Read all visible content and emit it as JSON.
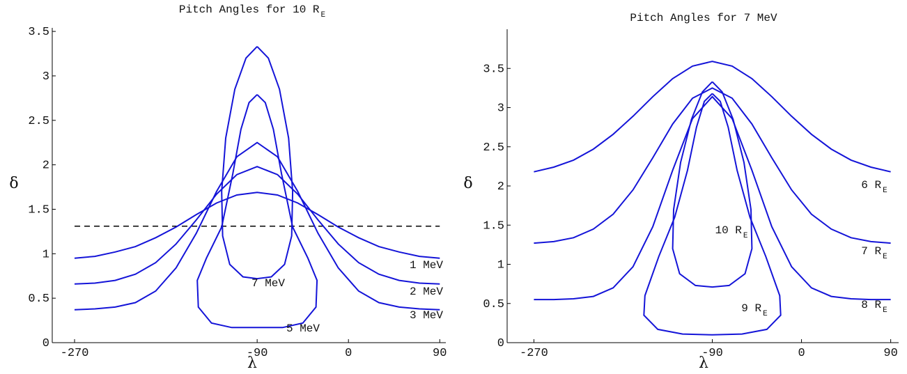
{
  "chart_data": [
    {
      "type": "line",
      "title": "Pitch Angles for 10 R",
      "title_sub": "E",
      "xlabel": "λ",
      "ylabel": "δ",
      "xlim": [
        -292,
        96
      ],
      "ylim": [
        0,
        3.54
      ],
      "xticks": [
        -270,
        -90,
        0,
        90
      ],
      "yticks": [
        0,
        0.5,
        1,
        1.5,
        2,
        2.5,
        3,
        3.5
      ],
      "hline": {
        "value": 1.31,
        "from": -270,
        "to": 90,
        "color": "#000000",
        "dashed": true
      },
      "series": [
        {
          "name": "1 MeV",
          "color": "#1414d8",
          "x": [
            -270,
            -250,
            -230,
            -210,
            -190,
            -170,
            -150,
            -130,
            -110,
            -90,
            -70,
            -50,
            -30,
            -10,
            10,
            30,
            50,
            70,
            90
          ],
          "values": [
            0.95,
            0.97,
            1.02,
            1.08,
            1.18,
            1.3,
            1.44,
            1.57,
            1.66,
            1.69,
            1.66,
            1.57,
            1.44,
            1.3,
            1.18,
            1.08,
            1.02,
            0.97,
            0.95
          ]
        },
        {
          "name": "2 MeV",
          "color": "#1414d8",
          "x": [
            -270,
            -250,
            -230,
            -210,
            -190,
            -170,
            -150,
            -130,
            -110,
            -90,
            -70,
            -50,
            -30,
            -10,
            10,
            30,
            50,
            70,
            90
          ],
          "values": [
            0.66,
            0.67,
            0.7,
            0.77,
            0.9,
            1.11,
            1.38,
            1.67,
            1.89,
            1.98,
            1.89,
            1.67,
            1.38,
            1.11,
            0.9,
            0.77,
            0.7,
            0.67,
            0.66
          ]
        },
        {
          "name": "3 MeV",
          "color": "#1414d8",
          "x": [
            -270,
            -250,
            -230,
            -210,
            -190,
            -170,
            -150,
            -130,
            -110,
            -90,
            -70,
            -50,
            -30,
            -10,
            10,
            30,
            50,
            70,
            90
          ],
          "values": [
            0.37,
            0.38,
            0.4,
            0.45,
            0.58,
            0.84,
            1.23,
            1.7,
            2.09,
            2.25,
            2.09,
            1.7,
            1.23,
            0.84,
            0.58,
            0.45,
            0.4,
            0.38,
            0.37
          ]
        },
        {
          "name": "7 MeV",
          "color": "#1414d8",
          "x": [
            -90,
            -79,
            -68,
            -59,
            -55,
            -56,
            -63,
            -76,
            -90,
            -104,
            -117,
            -124,
            -125,
            -121,
            -112,
            -101,
            -90
          ],
          "values": [
            3.33,
            3.2,
            2.85,
            2.3,
            1.7,
            1.2,
            0.88,
            0.74,
            0.72,
            0.74,
            0.88,
            1.2,
            1.7,
            2.3,
            2.85,
            3.2,
            3.33
          ]
        },
        {
          "name": "5 MeV",
          "color": "#1414d8",
          "x": [
            -90,
            -82,
            -74,
            -66,
            -55,
            -40,
            -31,
            -32,
            -45,
            -65,
            -90,
            -115,
            -135,
            -148,
            -149,
            -140,
            -125,
            -114,
            -106,
            -98,
            -90
          ],
          "values": [
            2.79,
            2.7,
            2.4,
            1.9,
            1.3,
            0.95,
            0.7,
            0.4,
            0.22,
            0.17,
            0.17,
            0.17,
            0.22,
            0.4,
            0.7,
            0.95,
            1.3,
            1.9,
            2.4,
            2.7,
            2.79
          ]
        }
      ]
    },
    {
      "type": "line",
      "title": "Pitch Angles for 7 MeV",
      "xlabel": "λ",
      "ylabel": "δ",
      "xlim": [
        -297,
        98
      ],
      "ylim": [
        0,
        4
      ],
      "xticks": [
        -270,
        -90,
        0,
        90
      ],
      "yticks": [
        0,
        0.5,
        1,
        1.5,
        2,
        2.5,
        3,
        3.5
      ],
      "series": [
        {
          "name": "6 R",
          "name_sub": "E",
          "color": "#1414d8",
          "x": [
            -270,
            -250,
            -230,
            -210,
            -190,
            -170,
            -150,
            -130,
            -110,
            -90,
            -70,
            -50,
            -30,
            -10,
            10,
            30,
            50,
            70,
            90
          ],
          "values": [
            2.18,
            2.24,
            2.33,
            2.47,
            2.66,
            2.89,
            3.14,
            3.37,
            3.53,
            3.59,
            3.53,
            3.37,
            3.14,
            2.89,
            2.66,
            2.47,
            2.33,
            2.24,
            2.18
          ]
        },
        {
          "name": "7 R",
          "name_sub": "E",
          "color": "#1414d8",
          "x": [
            -270,
            -250,
            -230,
            -210,
            -190,
            -170,
            -150,
            -130,
            -110,
            -90,
            -70,
            -50,
            -30,
            -10,
            10,
            30,
            50,
            70,
            90
          ],
          "values": [
            1.27,
            1.29,
            1.34,
            1.45,
            1.64,
            1.95,
            2.36,
            2.79,
            3.12,
            3.25,
            3.12,
            2.79,
            2.36,
            1.95,
            1.64,
            1.45,
            1.34,
            1.29,
            1.27
          ]
        },
        {
          "name": "8 R",
          "name_sub": "E",
          "color": "#1414d8",
          "x": [
            -270,
            -250,
            -230,
            -210,
            -190,
            -170,
            -150,
            -130,
            -110,
            -90,
            -70,
            -50,
            -30,
            -10,
            10,
            30,
            50,
            70,
            90
          ],
          "values": [
            0.55,
            0.55,
            0.56,
            0.59,
            0.7,
            0.97,
            1.48,
            2.2,
            2.86,
            3.14,
            2.86,
            2.2,
            1.48,
            0.97,
            0.7,
            0.59,
            0.56,
            0.55,
            0.55
          ]
        },
        {
          "name": "10 R",
          "name_sub": "E",
          "color": "#1414d8",
          "x": [
            -90,
            -80,
            -69,
            -58,
            -51,
            -50,
            -57,
            -73,
            -90,
            -107,
            -123,
            -130,
            -129,
            -122,
            -111,
            -100,
            -90
          ],
          "values": [
            3.33,
            3.2,
            2.85,
            2.3,
            1.7,
            1.2,
            0.88,
            0.73,
            0.71,
            0.73,
            0.88,
            1.2,
            1.7,
            2.3,
            2.85,
            3.2,
            3.33
          ]
        },
        {
          "name": "9 R",
          "name_sub": "E",
          "color": "#1414d8",
          "x": [
            -90,
            -82,
            -74,
            -65,
            -52,
            -36,
            -22,
            -21,
            -35,
            -60,
            -90,
            -120,
            -145,
            -159,
            -158,
            -144,
            -128,
            -115,
            -106,
            -98,
            -90
          ],
          "values": [
            3.18,
            3.08,
            2.75,
            2.2,
            1.6,
            1.1,
            0.6,
            0.35,
            0.17,
            0.11,
            0.1,
            0.11,
            0.17,
            0.35,
            0.6,
            1.1,
            1.6,
            2.2,
            2.75,
            3.08,
            3.18
          ]
        }
      ]
    }
  ]
}
